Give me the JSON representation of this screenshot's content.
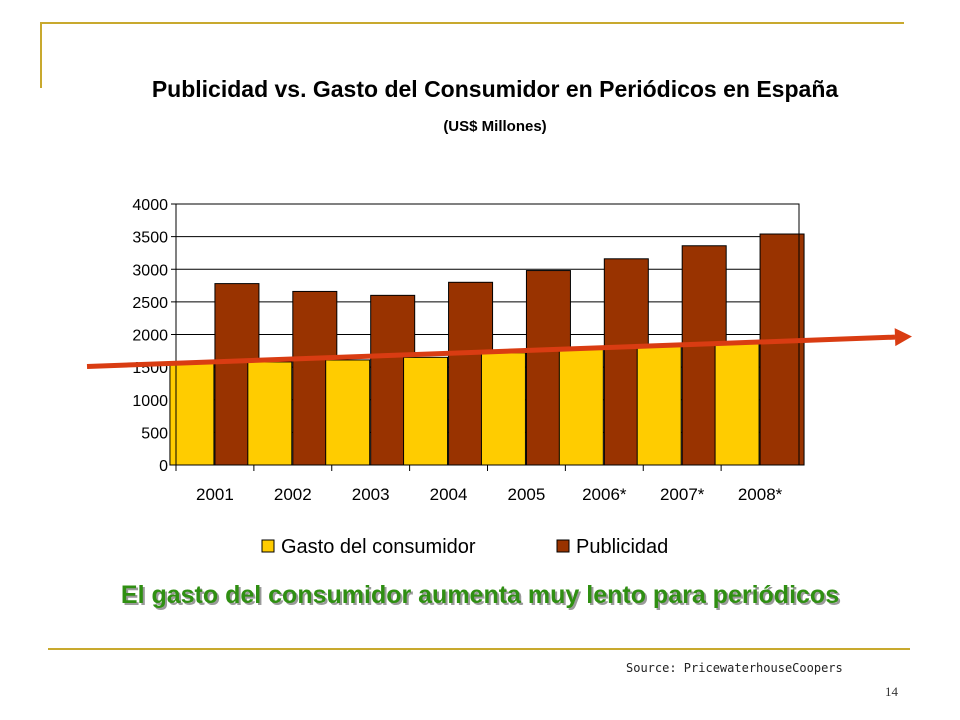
{
  "slide": {
    "title": "Publicidad vs. Gasto del Consumidor en Periódicos en España",
    "subtitle": "(US$ Millones)",
    "headline": "El gasto del consumidor aumenta muy lento para periódicos",
    "source": "Source: PricewaterhouseCoopers",
    "page_number": "14",
    "accent_color": "#c8a92e"
  },
  "chart_data": {
    "type": "bar",
    "categories": [
      "2001",
      "2002",
      "2003",
      "2004",
      "2005",
      "2006*",
      "2007*",
      "2008*"
    ],
    "series": [
      {
        "name": "Gasto del consumidor",
        "color": "#ffcc00",
        "values": [
          1560,
          1580,
          1610,
          1650,
          1720,
          1770,
          1820,
          1870
        ]
      },
      {
        "name": "Publicidad",
        "color": "#993300",
        "values": [
          2780,
          2660,
          2600,
          2800,
          2980,
          3160,
          3360,
          3540
        ]
      }
    ],
    "ylim": [
      0,
      4000
    ],
    "yticks": [
      "0",
      "500",
      "1000",
      "1500",
      "2000",
      "2500",
      "3000",
      "3500",
      "4000"
    ],
    "grid": true,
    "legend": "bottom",
    "trend_arrow": {
      "color": "#d93c12",
      "from_value": 1510,
      "to_value": 1960
    }
  }
}
